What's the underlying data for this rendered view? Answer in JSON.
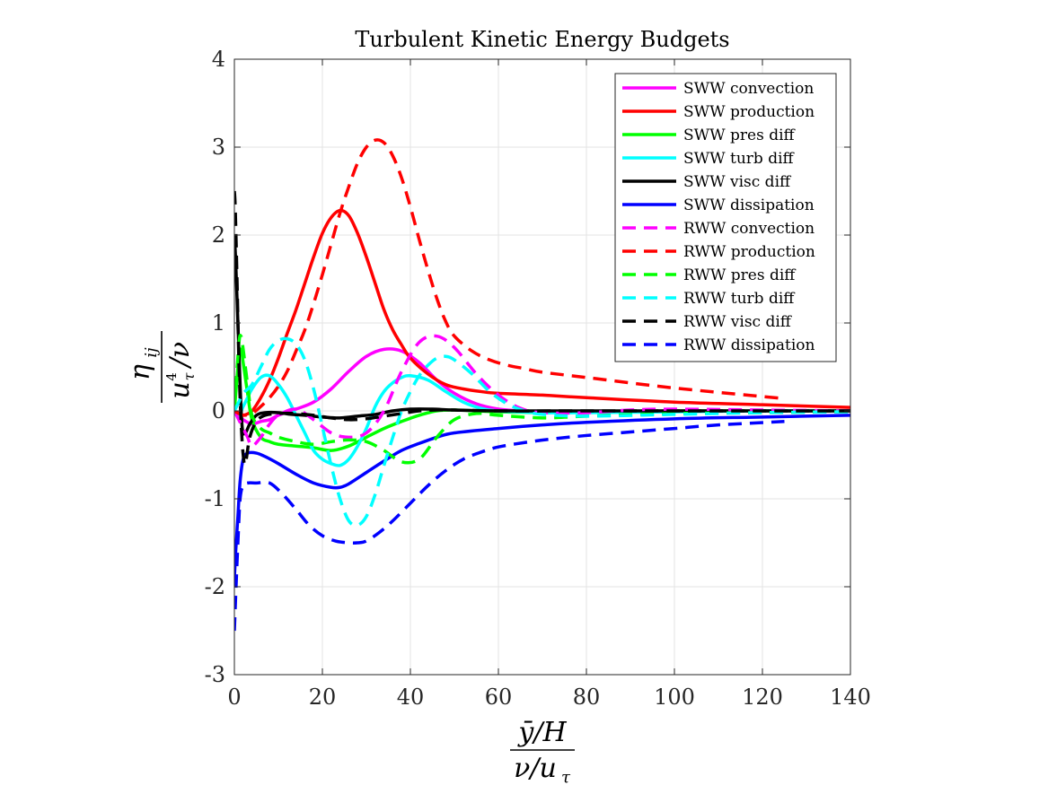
{
  "chart_data": {
    "type": "line",
    "title": "Turbulent Kinetic Energy Budgets",
    "xlabel": {
      "num": "ȳ/H",
      "den": "ν/u",
      "den_sub": "τ"
    },
    "ylabel": {
      "num": "η",
      "num_sub": "ij",
      "den": "u",
      "den_sup": "4",
      "den_sub": "τ",
      "den_tail": "/ν"
    },
    "xlim": [
      0,
      140
    ],
    "ylim": [
      -3,
      4
    ],
    "xticks": [
      0,
      20,
      40,
      60,
      80,
      100,
      120,
      140
    ],
    "yticks": [
      -3,
      -2,
      -1,
      0,
      1,
      2,
      3,
      4
    ],
    "grid": true,
    "legend_position": "top-right",
    "series": [
      {
        "name": "SWW convection",
        "color": "#ff00ff",
        "dash": false,
        "x": [
          0,
          1,
          2,
          4,
          6,
          8,
          10,
          14,
          18,
          22,
          26,
          30,
          34,
          38,
          42,
          46,
          50,
          55,
          60,
          65,
          70,
          80,
          100,
          120,
          140
        ],
        "y": [
          0,
          -0.05,
          -0.1,
          -0.15,
          -0.12,
          -0.1,
          -0.05,
          0.02,
          0.1,
          0.25,
          0.45,
          0.62,
          0.7,
          0.68,
          0.55,
          0.35,
          0.2,
          0.08,
          0.02,
          0,
          -0.02,
          -0.01,
          0,
          0,
          0
        ]
      },
      {
        "name": "SWW production",
        "color": "#ff0000",
        "dash": false,
        "x": [
          0,
          1,
          2,
          4,
          6,
          8,
          10,
          12,
          14,
          16,
          18,
          20,
          22,
          24,
          26,
          28,
          30,
          32,
          34,
          36,
          38,
          40,
          44,
          48,
          52,
          56,
          60,
          70,
          80,
          100,
          120,
          140
        ],
        "y": [
          0,
          -0.03,
          -0.05,
          0,
          0.15,
          0.35,
          0.6,
          0.88,
          1.15,
          1.45,
          1.75,
          2.02,
          2.2,
          2.28,
          2.22,
          2.02,
          1.75,
          1.45,
          1.15,
          0.92,
          0.75,
          0.6,
          0.42,
          0.3,
          0.25,
          0.22,
          0.2,
          0.18,
          0.15,
          0.1,
          0.07,
          0.04
        ]
      },
      {
        "name": "SWW pres diff",
        "color": "#00ff00",
        "dash": false,
        "x": [
          0,
          1,
          1.5,
          2,
          3,
          4,
          6,
          8,
          10,
          14,
          18,
          22,
          26,
          30,
          34,
          38,
          42,
          46,
          50,
          55,
          60,
          70,
          80,
          100,
          120,
          140
        ],
        "y": [
          0,
          0.6,
          0.7,
          0.55,
          0.2,
          -0.1,
          -0.3,
          -0.35,
          -0.38,
          -0.4,
          -0.42,
          -0.45,
          -0.4,
          -0.3,
          -0.2,
          -0.12,
          -0.05,
          0,
          0.01,
          0,
          -0.01,
          -0.02,
          -0.01,
          0,
          0,
          0
        ]
      },
      {
        "name": "SWW turb diff",
        "color": "#00ffff",
        "dash": false,
        "x": [
          0,
          1,
          2,
          3,
          4,
          6,
          8,
          10,
          12,
          14,
          16,
          18,
          20,
          22,
          24,
          26,
          28,
          30,
          32,
          34,
          36,
          38,
          40,
          44,
          48,
          52,
          56,
          60,
          70,
          80,
          100,
          120,
          140
        ],
        "y": [
          0,
          -0.05,
          0.05,
          0.15,
          0.25,
          0.38,
          0.4,
          0.3,
          0.15,
          -0.05,
          -0.25,
          -0.45,
          -0.55,
          -0.6,
          -0.62,
          -0.55,
          -0.4,
          -0.2,
          0.05,
          0.22,
          0.32,
          0.38,
          0.4,
          0.35,
          0.22,
          0.1,
          0.03,
          0,
          -0.02,
          -0.02,
          -0.01,
          0,
          0
        ]
      },
      {
        "name": "SWW visc diff",
        "color": "#000000",
        "dash": false,
        "x": [
          0,
          0.3,
          0.8,
          1.3,
          1.8,
          2.5,
          3.5,
          5,
          7,
          10,
          13,
          16,
          20,
          24,
          28,
          32,
          36,
          40,
          45,
          50,
          60,
          80,
          100,
          140
        ],
        "y": [
          2.0,
          1.7,
          1.0,
          0.3,
          -0.2,
          -0.25,
          -0.15,
          -0.05,
          -0.02,
          -0.02,
          -0.04,
          -0.05,
          -0.07,
          -0.08,
          -0.06,
          -0.04,
          0,
          0.02,
          0.02,
          0.01,
          0,
          0,
          0,
          0
        ]
      },
      {
        "name": "SWW dissipation",
        "color": "#0000ff",
        "dash": false,
        "x": [
          0,
          0.3,
          0.8,
          1.3,
          2,
          3,
          5,
          7,
          10,
          14,
          18,
          22,
          24,
          26,
          30,
          34,
          38,
          42,
          46,
          50,
          60,
          70,
          80,
          100,
          120,
          140
        ],
        "y": [
          -1.9,
          -1.6,
          -1.2,
          -0.8,
          -0.55,
          -0.48,
          -0.48,
          -0.52,
          -0.6,
          -0.72,
          -0.82,
          -0.87,
          -0.87,
          -0.83,
          -0.7,
          -0.57,
          -0.45,
          -0.37,
          -0.3,
          -0.25,
          -0.2,
          -0.16,
          -0.13,
          -0.09,
          -0.07,
          -0.05
        ]
      },
      {
        "name": "RWW convection",
        "color": "#ff00ff",
        "dash": true,
        "x": [
          0,
          1,
          2,
          3,
          4,
          6,
          8,
          10,
          14,
          18,
          22,
          26,
          30,
          34,
          38,
          42,
          46,
          50,
          55,
          60,
          65,
          70,
          80,
          90,
          100,
          120,
          140
        ],
        "y": [
          0,
          -0.1,
          -0.2,
          -0.3,
          -0.4,
          -0.3,
          -0.15,
          -0.05,
          0.02,
          -0.1,
          -0.25,
          -0.3,
          -0.25,
          0,
          0.45,
          0.78,
          0.85,
          0.72,
          0.42,
          0.18,
          0.03,
          -0.02,
          -0.02,
          0.01,
          0.02,
          0.01,
          0
        ]
      },
      {
        "name": "RWW production",
        "color": "#ff0000",
        "dash": true,
        "x": [
          0,
          1,
          2,
          4,
          6,
          8,
          10,
          12,
          14,
          16,
          18,
          20,
          22,
          24,
          26,
          28,
          30,
          32,
          34,
          36,
          38,
          40,
          42,
          44,
          46,
          48,
          50,
          54,
          58,
          62,
          66,
          70,
          80,
          100,
          125
        ],
        "y": [
          0,
          -0.03,
          -0.05,
          -0.03,
          0.05,
          0.15,
          0.28,
          0.45,
          0.68,
          0.92,
          1.22,
          1.55,
          1.9,
          2.25,
          2.55,
          2.82,
          3.0,
          3.08,
          3.05,
          2.9,
          2.65,
          2.32,
          1.95,
          1.6,
          1.28,
          1.02,
          0.85,
          0.68,
          0.58,
          0.52,
          0.48,
          0.44,
          0.38,
          0.26,
          0.14
        ]
      },
      {
        "name": "RWW pres diff",
        "color": "#00ff00",
        "dash": true,
        "x": [
          0,
          1,
          1.5,
          2,
          3,
          4,
          6,
          8,
          10,
          14,
          18,
          22,
          26,
          30,
          34,
          38,
          42,
          46,
          50,
          55,
          60,
          70,
          80,
          100,
          120,
          140
        ],
        "y": [
          0,
          0.75,
          0.85,
          0.7,
          0.3,
          -0.05,
          -0.2,
          -0.25,
          -0.3,
          -0.35,
          -0.38,
          -0.35,
          -0.33,
          -0.35,
          -0.45,
          -0.58,
          -0.55,
          -0.3,
          -0.1,
          -0.03,
          -0.05,
          -0.08,
          -0.06,
          -0.03,
          -0.02,
          -0.01
        ]
      },
      {
        "name": "RWW turb diff",
        "color": "#00ffff",
        "dash": true,
        "x": [
          0,
          1,
          2,
          4,
          6,
          8,
          10,
          12,
          14,
          16,
          18,
          20,
          22,
          24,
          26,
          28,
          30,
          32,
          34,
          36,
          38,
          40,
          42,
          44,
          46,
          48,
          50,
          54,
          58,
          62,
          66,
          70,
          80,
          100,
          120,
          140
        ],
        "y": [
          0,
          0.1,
          0.2,
          0.3,
          0.5,
          0.7,
          0.8,
          0.82,
          0.76,
          0.58,
          0.25,
          -0.18,
          -0.62,
          -1.0,
          -1.25,
          -1.3,
          -1.2,
          -0.95,
          -0.62,
          -0.3,
          0,
          0.22,
          0.4,
          0.52,
          0.6,
          0.62,
          0.58,
          0.42,
          0.22,
          0.08,
          0,
          -0.04,
          -0.06,
          -0.04,
          -0.02,
          -0.01
        ]
      },
      {
        "name": "RWW visc diff",
        "color": "#000000",
        "dash": true,
        "x": [
          0,
          0.2,
          0.6,
          1.0,
          1.5,
          2,
          2.5,
          3.5,
          5,
          7,
          10,
          14,
          18,
          22,
          26,
          30,
          34,
          38,
          42,
          46,
          50,
          60,
          80,
          100,
          140
        ],
        "y": [
          2.5,
          2.3,
          1.5,
          0.6,
          -0.1,
          -0.5,
          -0.6,
          -0.3,
          -0.12,
          -0.05,
          -0.03,
          -0.03,
          -0.05,
          -0.08,
          -0.1,
          -0.09,
          -0.06,
          -0.03,
          0,
          0.01,
          0.01,
          0,
          0,
          0,
          0
        ]
      },
      {
        "name": "RWW dissipation",
        "color": "#0000ff",
        "dash": true,
        "x": [
          0,
          0.3,
          0.8,
          1.3,
          2,
          3,
          5,
          8,
          11,
          14,
          17,
          20,
          23,
          26,
          28,
          30,
          33,
          36,
          40,
          44,
          48,
          52,
          56,
          60,
          66,
          72,
          80,
          90,
          100,
          110,
          125
        ],
        "y": [
          -2.5,
          -2.1,
          -1.5,
          -1.0,
          -0.85,
          -0.82,
          -0.82,
          -0.82,
          -0.95,
          -1.12,
          -1.3,
          -1.42,
          -1.48,
          -1.5,
          -1.5,
          -1.48,
          -1.38,
          -1.25,
          -1.05,
          -0.85,
          -0.68,
          -0.55,
          -0.47,
          -0.41,
          -0.36,
          -0.32,
          -0.28,
          -0.24,
          -0.2,
          -0.16,
          -0.12
        ]
      }
    ]
  }
}
